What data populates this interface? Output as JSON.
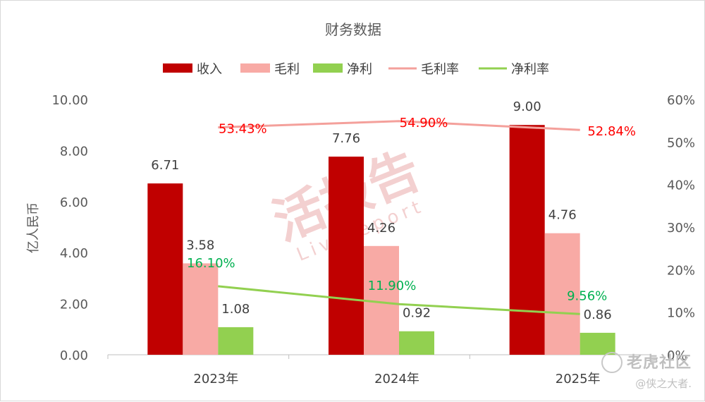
{
  "chart_data": {
    "type": "bar+line",
    "title": "财务数据",
    "categories": [
      "2023年",
      "2024年",
      "2025年"
    ],
    "y_left": {
      "label": "亿人民币",
      "range": [
        0,
        10
      ],
      "ticks": [
        "0.00",
        "2.00",
        "4.00",
        "6.00",
        "8.00",
        "10.00"
      ]
    },
    "y_right": {
      "range": [
        0,
        60
      ],
      "ticks": [
        "0%",
        "10%",
        "20%",
        "30%",
        "40%",
        "50%",
        "60%"
      ]
    },
    "bar_series": [
      {
        "name": "收入",
        "color": "#c00000",
        "values": [
          6.71,
          7.76,
          9.0
        ],
        "labels": [
          "6.71",
          "7.76",
          "9.00"
        ]
      },
      {
        "name": "毛利",
        "color": "#f8aaa5",
        "values": [
          3.58,
          4.26,
          4.76
        ],
        "labels": [
          "3.58",
          "4.26",
          "4.76"
        ]
      },
      {
        "name": "净利",
        "color": "#92d050",
        "values": [
          1.08,
          0.92,
          0.86
        ],
        "labels": [
          "1.08",
          "0.92",
          "0.86"
        ]
      }
    ],
    "line_series": [
      {
        "name": "毛利率",
        "color": "#f4a09b",
        "label_color": "#ff0000",
        "values": [
          53.43,
          54.9,
          52.84
        ],
        "labels": [
          "53.43%",
          "54.90%",
          "52.84%"
        ]
      },
      {
        "name": "净利率",
        "color": "#92d050",
        "label_color": "#00b050",
        "values": [
          16.1,
          11.9,
          9.56
        ],
        "labels": [
          "16.10%",
          "11.90%",
          "9.56%"
        ]
      }
    ],
    "legend": "top",
    "grid": false
  },
  "watermarks": {
    "center": "活报告 Livereport",
    "brand": "老虎社区",
    "user": "@侠之大者."
  }
}
